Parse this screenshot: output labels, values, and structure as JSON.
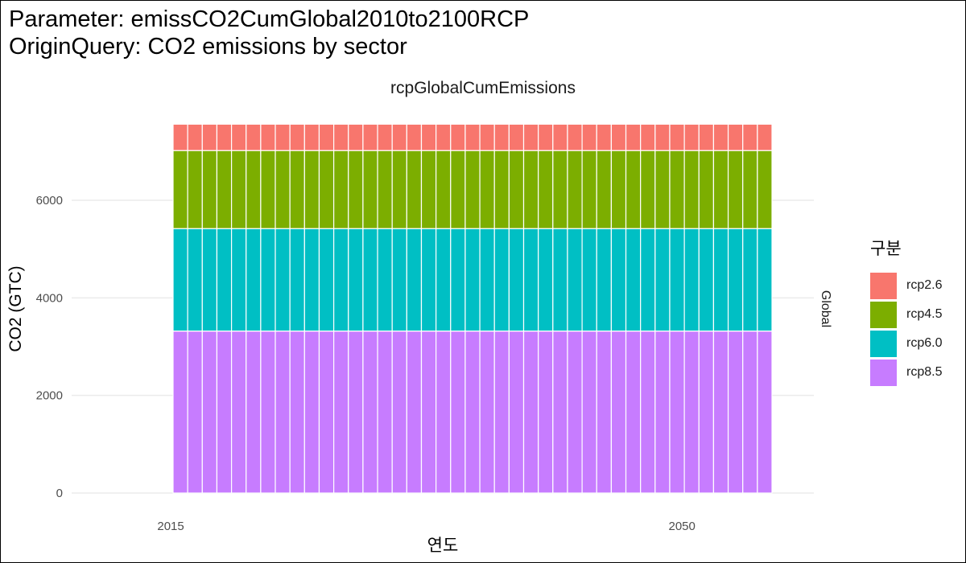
{
  "title_lines": [
    "Parameter: emissCO2CumGlobal2010to2100RCP",
    "OriginQuery: CO2 emissions by sector"
  ],
  "facet_label": "rcpGlobalCumEmissions",
  "strip_label": "Global",
  "legend": {
    "title": "구분",
    "items": [
      {
        "label": "rcp2.6",
        "color": "#F8766D"
      },
      {
        "label": "rcp4.5",
        "color": "#7CAE00"
      },
      {
        "label": "rcp6.0",
        "color": "#00BFC4"
      },
      {
        "label": "rcp8.5",
        "color": "#C77CFF"
      }
    ]
  },
  "chart_data": {
    "type": "bar",
    "stacked": true,
    "title": "rcpGlobalCumEmissions",
    "xlabel": "연도",
    "ylabel": "CO2 (GTC)",
    "x_start": 2015,
    "x_end": 2055,
    "x_ticks": [
      2015,
      2050
    ],
    "xlim": [
      2015,
      2055
    ],
    "y_ticks": [
      0,
      2000,
      4000,
      6000
    ],
    "ylim": [
      0,
      7550
    ],
    "grid": true,
    "legend_position": "right",
    "series": [
      {
        "name": "rcp8.5",
        "color": "#C77CFF",
        "value": 3320
      },
      {
        "name": "rcp6.0",
        "color": "#00BFC4",
        "value": 2100
      },
      {
        "name": "rcp4.5",
        "color": "#7CAE00",
        "value": 1600
      },
      {
        "name": "rcp2.6",
        "color": "#F8766D",
        "value": 540
      }
    ]
  }
}
